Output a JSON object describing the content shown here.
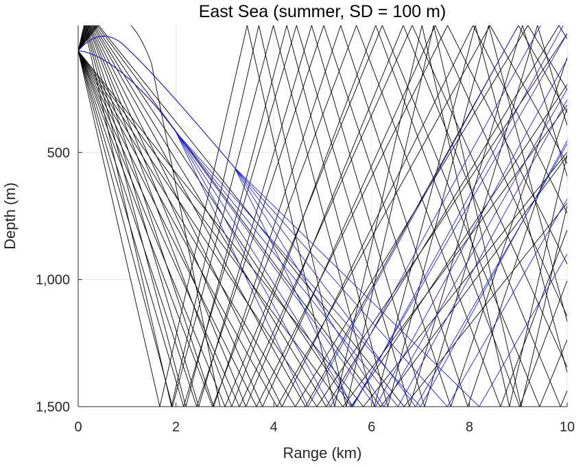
{
  "chart_data": {
    "type": "line",
    "title": "East Sea (summer, SD = 100 m)",
    "xlabel": "Range (km)",
    "ylabel": "Depth (m)",
    "xlim": [
      0,
      10
    ],
    "ylim": [
      0,
      1500
    ],
    "y_reversed": true,
    "grid": true,
    "source_depth_m": 100,
    "xticks": [
      0,
      2,
      4,
      6,
      8,
      10
    ],
    "xtick_labels": [
      "0",
      "2",
      "4",
      "6",
      "8",
      "10"
    ],
    "yticks": [
      500,
      1000,
      1500
    ],
    "ytick_labels": [
      "500",
      "1,000",
      "1,500"
    ],
    "series": [
      {
        "color": "#000000",
        "description_kind": "bottom-bounce rays",
        "launch_angles_deg": [
          -40,
          -36,
          -33,
          -30,
          -27,
          -25,
          -23,
          -21,
          -19,
          -17.5,
          -16,
          -14.5,
          -13.5,
          13.5,
          14.5,
          16,
          17.5,
          19,
          21,
          23,
          25,
          27,
          30,
          33,
          36,
          40
        ]
      },
      {
        "color": "#000000",
        "description_kind": "refracted arc ray",
        "launch_angles_deg": [
          12
        ]
      },
      {
        "color": "#1f1fd8",
        "description_kind": "downward-launched rays",
        "launch_angles_deg": [
          5,
          6,
          7,
          8,
          9,
          10
        ]
      },
      {
        "color": "#1f1fd8",
        "description_kind": "upward-launched rays",
        "launch_angles_deg": [
          -4,
          -5,
          -6,
          -7,
          -8
        ]
      }
    ]
  }
}
